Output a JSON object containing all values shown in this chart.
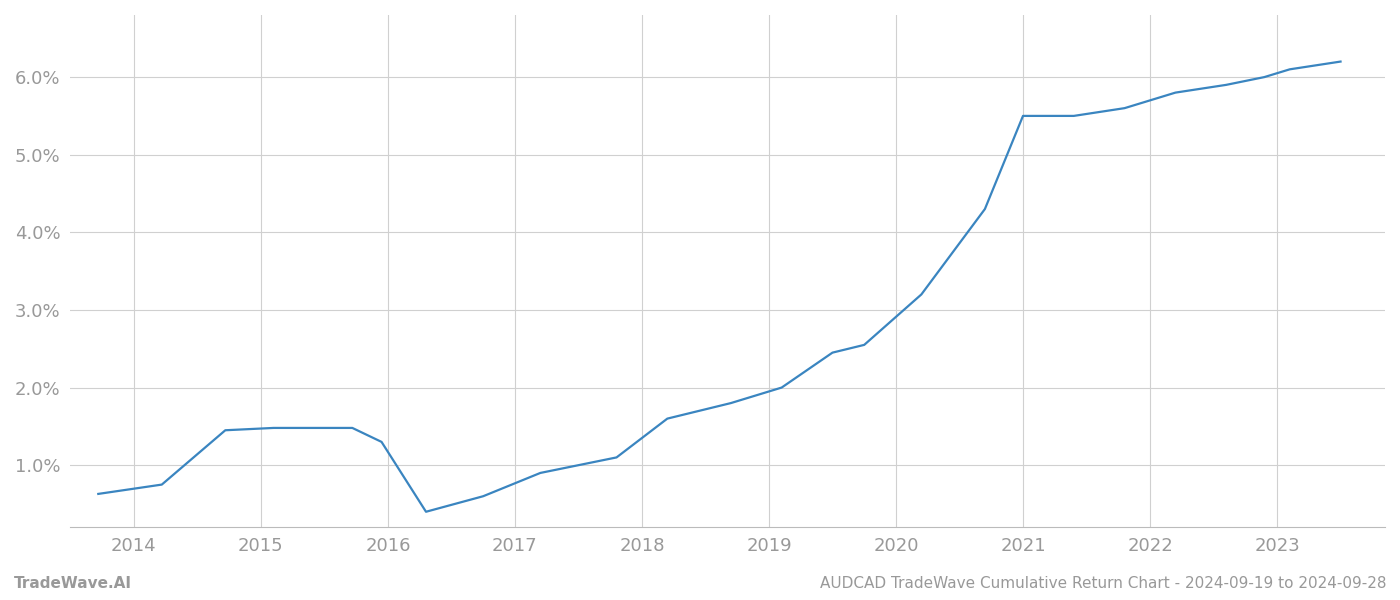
{
  "x_years": [
    2013.72,
    2014.22,
    2014.72,
    2015.1,
    2015.72,
    2015.95,
    2016.3,
    2016.75,
    2017.2,
    2017.8,
    2018.2,
    2018.7,
    2019.1,
    2019.5,
    2019.75,
    2020.2,
    2020.7,
    2021.0,
    2021.4,
    2021.8,
    2022.2,
    2022.6,
    2022.9,
    2023.1,
    2023.5
  ],
  "y_values": [
    0.0063,
    0.0075,
    0.0145,
    0.0148,
    0.0148,
    0.013,
    0.004,
    0.006,
    0.009,
    0.011,
    0.016,
    0.018,
    0.02,
    0.0245,
    0.0255,
    0.032,
    0.043,
    0.055,
    0.055,
    0.056,
    0.058,
    0.059,
    0.06,
    0.061,
    0.062
  ],
  "line_color": "#3a85c0",
  "line_width": 1.6,
  "bg_color": "#ffffff",
  "grid_color": "#d0d0d0",
  "footer_left": "TradeWave.AI",
  "footer_right": "AUDCAD TradeWave Cumulative Return Chart - 2024-09-19 to 2024-09-28",
  "x_ticks": [
    2014,
    2015,
    2016,
    2017,
    2018,
    2019,
    2020,
    2021,
    2022,
    2023
  ],
  "y_ticks": [
    0.01,
    0.02,
    0.03,
    0.04,
    0.05,
    0.06
  ],
  "xlim": [
    2013.5,
    2023.85
  ],
  "ylim": [
    0.002,
    0.068
  ],
  "tick_color": "#999999",
  "label_fontsize": 13,
  "footer_fontsize": 11
}
